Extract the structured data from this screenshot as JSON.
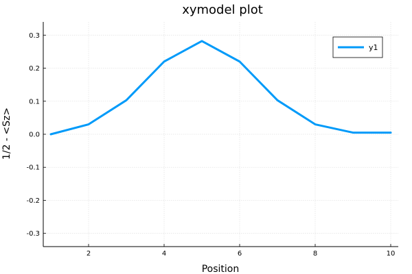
{
  "chart_data": {
    "type": "line",
    "title": "xymodel plot",
    "xlabel": "Position",
    "ylabel": "1/2 - <Sz>",
    "xlim": [
      0.8,
      10.2
    ],
    "ylim": [
      -0.34,
      0.34
    ],
    "xticks": [
      2,
      4,
      6,
      8,
      10
    ],
    "yticks": [
      -0.3,
      -0.2,
      -0.1,
      0.0,
      0.1,
      0.2,
      0.3
    ],
    "ytick_labels": [
      "-0.3",
      "-0.2",
      "-0.1",
      "0.0",
      "0.1",
      "0.2",
      "0.3"
    ],
    "grid": true,
    "legend_position": "top-right",
    "series": [
      {
        "name": "y1",
        "color": "#009af9",
        "x": [
          1,
          2,
          3,
          4,
          5,
          6,
          7,
          8,
          9,
          10
        ],
        "y": [
          0.0,
          0.03,
          0.103,
          0.22,
          0.282,
          0.22,
          0.103,
          0.03,
          0.005,
          0.005
        ]
      }
    ]
  }
}
